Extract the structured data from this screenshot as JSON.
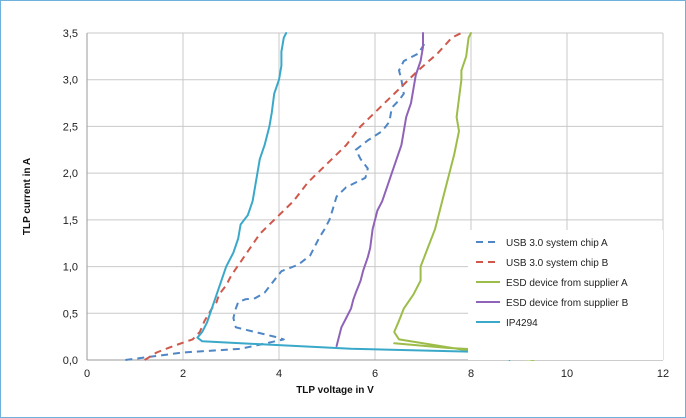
{
  "chart_data": {
    "type": "line",
    "xlabel": "TLP voltage in V",
    "ylabel": "TLP current in A",
    "xlim": [
      0,
      12
    ],
    "ylim": [
      0,
      3.5
    ],
    "x_ticks": [
      "0",
      "2",
      "4",
      "6",
      "8",
      "10",
      "12"
    ],
    "y_ticks": [
      "0,0",
      "0,5",
      "1,0",
      "1,5",
      "2,0",
      "2,5",
      "3,0",
      "3,5"
    ],
    "grid": true,
    "legend_position": "bottom-right",
    "series": [
      {
        "name": "USB 3.0 system chip A",
        "color": "#4f86c6",
        "dash": "dashed",
        "points": [
          [
            0.8,
            0.0
          ],
          [
            2.0,
            0.08
          ],
          [
            3.2,
            0.12
          ],
          [
            4.1,
            0.22
          ],
          [
            3.9,
            0.25
          ],
          [
            3.5,
            0.3
          ],
          [
            3.1,
            0.35
          ],
          [
            3.05,
            0.45
          ],
          [
            3.1,
            0.55
          ],
          [
            3.15,
            0.62
          ],
          [
            3.3,
            0.65
          ],
          [
            3.5,
            0.66
          ],
          [
            3.7,
            0.72
          ],
          [
            3.85,
            0.82
          ],
          [
            4.05,
            0.95
          ],
          [
            4.4,
            1.02
          ],
          [
            4.65,
            1.12
          ],
          [
            4.75,
            1.22
          ],
          [
            4.85,
            1.32
          ],
          [
            4.95,
            1.4
          ],
          [
            5.05,
            1.5
          ],
          [
            5.1,
            1.58
          ],
          [
            5.2,
            1.75
          ],
          [
            5.4,
            1.85
          ],
          [
            5.8,
            1.95
          ],
          [
            5.85,
            2.05
          ],
          [
            5.7,
            2.15
          ],
          [
            5.6,
            2.25
          ],
          [
            5.85,
            2.35
          ],
          [
            6.15,
            2.45
          ],
          [
            6.3,
            2.55
          ],
          [
            6.35,
            2.7
          ],
          [
            6.5,
            2.78
          ],
          [
            6.6,
            2.85
          ],
          [
            6.55,
            3.0
          ],
          [
            6.5,
            3.1
          ],
          [
            6.6,
            3.2
          ],
          [
            6.9,
            3.28
          ],
          [
            7.05,
            3.4
          ]
        ]
      },
      {
        "name": "USB 3.0 system chip B",
        "color": "#d0584b",
        "dash": "dashed",
        "points": [
          [
            1.2,
            0.0
          ],
          [
            1.45,
            0.08
          ],
          [
            1.8,
            0.15
          ],
          [
            2.2,
            0.22
          ],
          [
            2.35,
            0.3
          ],
          [
            2.45,
            0.42
          ],
          [
            2.6,
            0.55
          ],
          [
            2.7,
            0.62
          ],
          [
            2.75,
            0.7
          ],
          [
            2.9,
            0.8
          ],
          [
            3.0,
            0.9
          ],
          [
            3.2,
            1.05
          ],
          [
            3.4,
            1.2
          ],
          [
            3.6,
            1.35
          ],
          [
            3.8,
            1.45
          ],
          [
            4.0,
            1.55
          ],
          [
            4.3,
            1.7
          ],
          [
            4.6,
            1.9
          ],
          [
            5.0,
            2.1
          ],
          [
            5.4,
            2.3
          ],
          [
            5.7,
            2.5
          ],
          [
            6.1,
            2.7
          ],
          [
            6.5,
            2.9
          ],
          [
            6.9,
            3.1
          ],
          [
            7.3,
            3.28
          ],
          [
            7.6,
            3.45
          ],
          [
            7.8,
            3.5
          ]
        ]
      },
      {
        "name": "ESD device from supplier A",
        "color": "#9cbd4a",
        "dash": "solid",
        "points": [
          [
            6.4,
            0.18
          ],
          [
            7.5,
            0.13
          ],
          [
            9.0,
            0.09
          ],
          [
            9.4,
            0.08
          ],
          [
            9.3,
            0.0
          ],
          [
            8.8,
            0.03
          ],
          [
            6.5,
            0.22
          ],
          [
            6.4,
            0.3
          ],
          [
            6.5,
            0.42
          ],
          [
            6.6,
            0.55
          ],
          [
            6.8,
            0.7
          ],
          [
            6.95,
            0.85
          ],
          [
            6.95,
            1.0
          ],
          [
            7.1,
            1.2
          ],
          [
            7.25,
            1.4
          ],
          [
            7.35,
            1.6
          ],
          [
            7.45,
            1.8
          ],
          [
            7.55,
            2.0
          ],
          [
            7.65,
            2.2
          ],
          [
            7.75,
            2.45
          ],
          [
            7.7,
            2.6
          ],
          [
            7.75,
            2.8
          ],
          [
            7.8,
            3.0
          ],
          [
            7.8,
            3.1
          ],
          [
            7.9,
            3.25
          ],
          [
            7.95,
            3.45
          ],
          [
            8.0,
            3.5
          ]
        ]
      },
      {
        "name": "ESD device from supplier B",
        "color": "#8f63b8",
        "dash": "solid",
        "points": [
          [
            5.2,
            0.15
          ],
          [
            5.25,
            0.25
          ],
          [
            5.3,
            0.35
          ],
          [
            5.4,
            0.45
          ],
          [
            5.5,
            0.55
          ],
          [
            5.55,
            0.65
          ],
          [
            5.6,
            0.72
          ],
          [
            5.7,
            0.85
          ],
          [
            5.75,
            0.95
          ],
          [
            5.85,
            1.1
          ],
          [
            5.9,
            1.2
          ],
          [
            5.95,
            1.4
          ],
          [
            6.0,
            1.5
          ],
          [
            6.05,
            1.6
          ],
          [
            6.15,
            1.7
          ],
          [
            6.25,
            1.85
          ],
          [
            6.35,
            2.0
          ],
          [
            6.45,
            2.15
          ],
          [
            6.55,
            2.3
          ],
          [
            6.6,
            2.45
          ],
          [
            6.65,
            2.6
          ],
          [
            6.75,
            2.75
          ],
          [
            6.8,
            2.9
          ],
          [
            6.85,
            3.05
          ],
          [
            6.95,
            3.2
          ],
          [
            7.0,
            3.35
          ],
          [
            7.0,
            3.5
          ]
        ]
      },
      {
        "name": "IP4294",
        "color": "#3aa9c9",
        "dash": "solid",
        "points": [
          [
            8.8,
            0.0
          ],
          [
            8.7,
            0.08
          ],
          [
            5.5,
            0.12
          ],
          [
            2.4,
            0.2
          ],
          [
            2.3,
            0.24
          ],
          [
            2.4,
            0.3
          ],
          [
            2.5,
            0.4
          ],
          [
            2.6,
            0.55
          ],
          [
            2.7,
            0.7
          ],
          [
            2.8,
            0.85
          ],
          [
            2.9,
            1.0
          ],
          [
            3.05,
            1.15
          ],
          [
            3.15,
            1.3
          ],
          [
            3.2,
            1.45
          ],
          [
            3.35,
            1.55
          ],
          [
            3.45,
            1.7
          ],
          [
            3.5,
            1.85
          ],
          [
            3.55,
            2.0
          ],
          [
            3.6,
            2.15
          ],
          [
            3.7,
            2.3
          ],
          [
            3.8,
            2.5
          ],
          [
            3.85,
            2.65
          ],
          [
            3.9,
            2.85
          ],
          [
            4.0,
            3.0
          ],
          [
            4.05,
            3.15
          ],
          [
            4.05,
            3.3
          ],
          [
            4.1,
            3.45
          ],
          [
            4.15,
            3.5
          ]
        ]
      }
    ]
  }
}
